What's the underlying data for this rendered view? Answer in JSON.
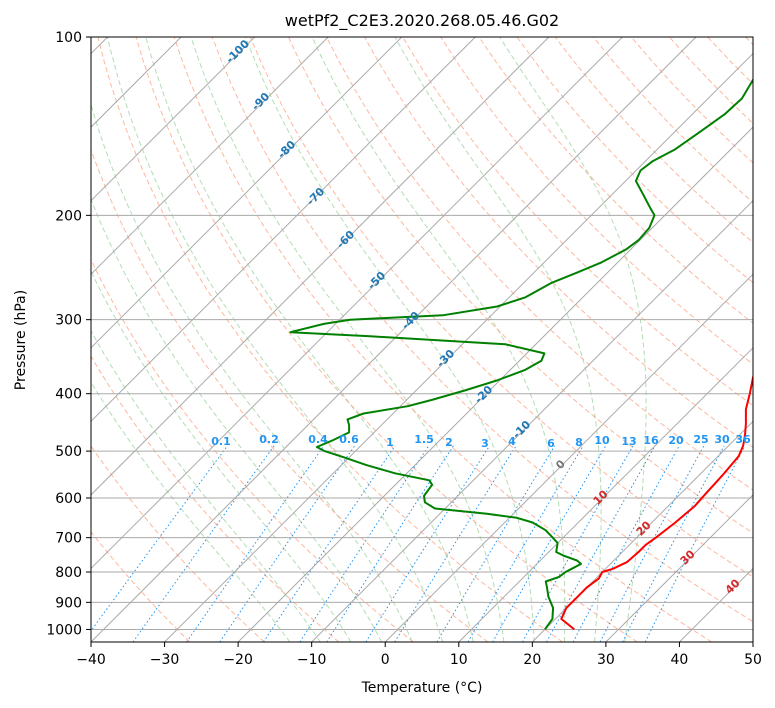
{
  "chart_data": {
    "type": "skew-t",
    "title": "wetPf2_C2E3.2020.268.05.46.G02",
    "xlabel": "Temperature (°C)",
    "ylabel": "Pressure (hPa)",
    "xlim": [
      -40,
      50
    ],
    "ylim": [
      1050,
      100
    ],
    "y_scale": "log",
    "grid": true,
    "x_ticks": [
      "−40",
      "−30",
      "−20",
      "−10",
      "0",
      "10",
      "20",
      "30",
      "40",
      "50"
    ],
    "y_ticks": [
      "100",
      "200",
      "300",
      "400",
      "500",
      "600",
      "700",
      "800",
      "900",
      "1000"
    ],
    "series": [
      {
        "color": "#ff0000",
        "values": [
          [
            24.0,
            1000
          ],
          [
            20.8,
            960
          ],
          [
            20.0,
            920
          ],
          [
            20.0,
            880
          ],
          [
            20.0,
            850
          ],
          [
            20.4,
            820
          ],
          [
            20.0,
            800
          ],
          [
            21.0,
            790
          ],
          [
            22.0,
            770
          ],
          [
            22.2,
            740
          ],
          [
            22.2,
            720
          ],
          [
            22.6,
            700
          ],
          [
            23.2,
            660
          ],
          [
            23.6,
            620
          ],
          [
            23.4,
            590
          ],
          [
            23.2,
            550
          ],
          [
            22.8,
            510
          ],
          [
            22.0,
            490
          ],
          [
            20.8,
            470
          ],
          [
            19.4,
            450
          ],
          [
            17.4,
            425
          ],
          [
            15.8,
            400
          ],
          [
            14.0,
            375
          ],
          [
            12.4,
            350
          ],
          [
            10.8,
            325
          ],
          [
            9.0,
            300
          ],
          [
            5.6,
            280
          ],
          [
            3.0,
            265
          ],
          [
            -0.6,
            245
          ],
          [
            -3.0,
            230
          ],
          [
            -5.4,
            215
          ],
          [
            -6.6,
            200
          ],
          [
            -6.4,
            185
          ],
          [
            -5.6,
            170
          ],
          [
            -6.0,
            160
          ],
          [
            -8.6,
            150
          ],
          [
            -12.0,
            140
          ],
          [
            -16.0,
            130
          ],
          [
            -17.6,
            123
          ],
          [
            -17.6,
            118
          ],
          [
            -17.0,
            113
          ],
          [
            -15.6,
            107
          ],
          [
            -13.0,
            100
          ]
        ]
      },
      {
        "color": "#008000",
        "values": [
          [
            20.0,
            1000
          ],
          [
            19.6,
            960
          ],
          [
            18.2,
            920
          ],
          [
            16.0,
            880
          ],
          [
            14.6,
            850
          ],
          [
            13.6,
            830
          ],
          [
            14.8,
            815
          ],
          [
            15.0,
            800
          ],
          [
            15.4,
            790
          ],
          [
            16.0,
            775
          ],
          [
            15.0,
            765
          ],
          [
            12.4,
            750
          ],
          [
            11.0,
            740
          ],
          [
            10.0,
            715
          ],
          [
            8.6,
            700
          ],
          [
            6.6,
            680
          ],
          [
            3.8,
            660
          ],
          [
            1.0,
            648
          ],
          [
            -3.6,
            638
          ],
          [
            -11.4,
            625
          ],
          [
            -13.6,
            610
          ],
          [
            -14.6,
            595
          ],
          [
            -15.0,
            570
          ],
          [
            -16.0,
            560
          ],
          [
            -21.6,
            545
          ],
          [
            -26.6,
            528
          ],
          [
            -30.8,
            512
          ],
          [
            -34.2,
            500
          ],
          [
            -35.8,
            492
          ],
          [
            -34.6,
            480
          ],
          [
            -33.4,
            465
          ],
          [
            -34.4,
            452
          ],
          [
            -35.4,
            442
          ],
          [
            -34.0,
            432
          ],
          [
            -29.0,
            420
          ],
          [
            -26.6,
            410
          ],
          [
            -23.4,
            395
          ],
          [
            -20.4,
            380
          ],
          [
            -18.0,
            365
          ],
          [
            -17.0,
            352
          ],
          [
            -17.6,
            342
          ],
          [
            -24.2,
            330
          ],
          [
            -43.6,
            320
          ],
          [
            -55.0,
            315
          ],
          [
            -51.6,
            305
          ],
          [
            -48.6,
            300
          ],
          [
            -36.6,
            295
          ],
          [
            -30.4,
            285
          ],
          [
            -27.8,
            275
          ],
          [
            -26.2,
            260
          ],
          [
            -24.2,
            250
          ],
          [
            -22.2,
            240
          ],
          [
            -20.6,
            228
          ],
          [
            -20.2,
            220
          ],
          [
            -20.4,
            210
          ],
          [
            -21.4,
            200
          ],
          [
            -22.8,
            195
          ],
          [
            -25.6,
            185
          ],
          [
            -28.6,
            175
          ],
          [
            -29.4,
            168
          ],
          [
            -29.0,
            162
          ],
          [
            -27.6,
            155
          ],
          [
            -26.6,
            145
          ],
          [
            -25.6,
            135
          ],
          [
            -25.4,
            127
          ],
          [
            -26.2,
            120
          ],
          [
            -26.8,
            115
          ],
          [
            -24.0,
            109
          ],
          [
            -21.0,
            104
          ],
          [
            -20.0,
            100
          ]
        ]
      }
    ],
    "dry_adiabat_labels": [
      "-100",
      "-90",
      "-80",
      "-70",
      "-60",
      "-50",
      "-40",
      "-30",
      "-20",
      "-10",
      "0",
      "10",
      "20",
      "30",
      "40"
    ],
    "moist_adiabat_labels": [
      "10",
      "20",
      "30",
      "40"
    ],
    "mixing_ratio_labels": [
      "0.1",
      "0.2",
      "0.4",
      "0.6",
      "1",
      "1.5",
      "2",
      "3",
      "4",
      "6",
      "8",
      "10",
      "13",
      "16",
      "20",
      "25",
      "30",
      "36"
    ]
  }
}
